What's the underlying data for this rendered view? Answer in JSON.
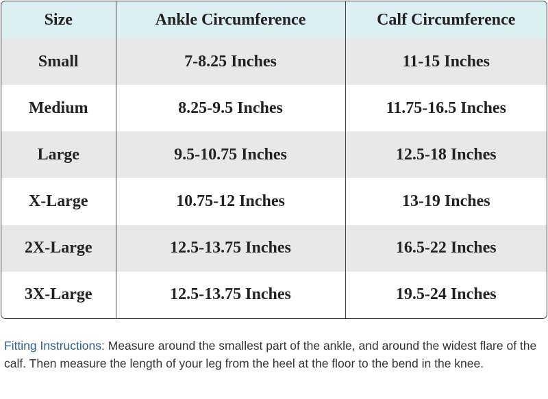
{
  "table": {
    "header": [
      "Size",
      "Ankle Circumference",
      "Calf Circumference"
    ],
    "rows": [
      [
        "Small",
        "7-8.25 Inches",
        "11-15 Inches"
      ],
      [
        "Medium",
        "8.25-9.5 Inches",
        "11.75-16.5 Inches"
      ],
      [
        "Large",
        "9.5-10.75 Inches",
        "12.5-18 Inches"
      ],
      [
        "X-Large",
        "10.75-12 Inches",
        "13-19 Inches"
      ],
      [
        "2X-Large",
        "12.5-13.75 Inches",
        "16.5-22 Inches"
      ],
      [
        "3X-Large",
        "12.5-13.75 Inches",
        "19.5-24 Inches"
      ]
    ]
  },
  "instructions": {
    "label": "Fitting Instructions:",
    "text": "Measure around the smallest part of the ankle, and around the widest flare of the calf. Then measure the length of your leg from the heel at the floor to the bend in the knee."
  }
}
